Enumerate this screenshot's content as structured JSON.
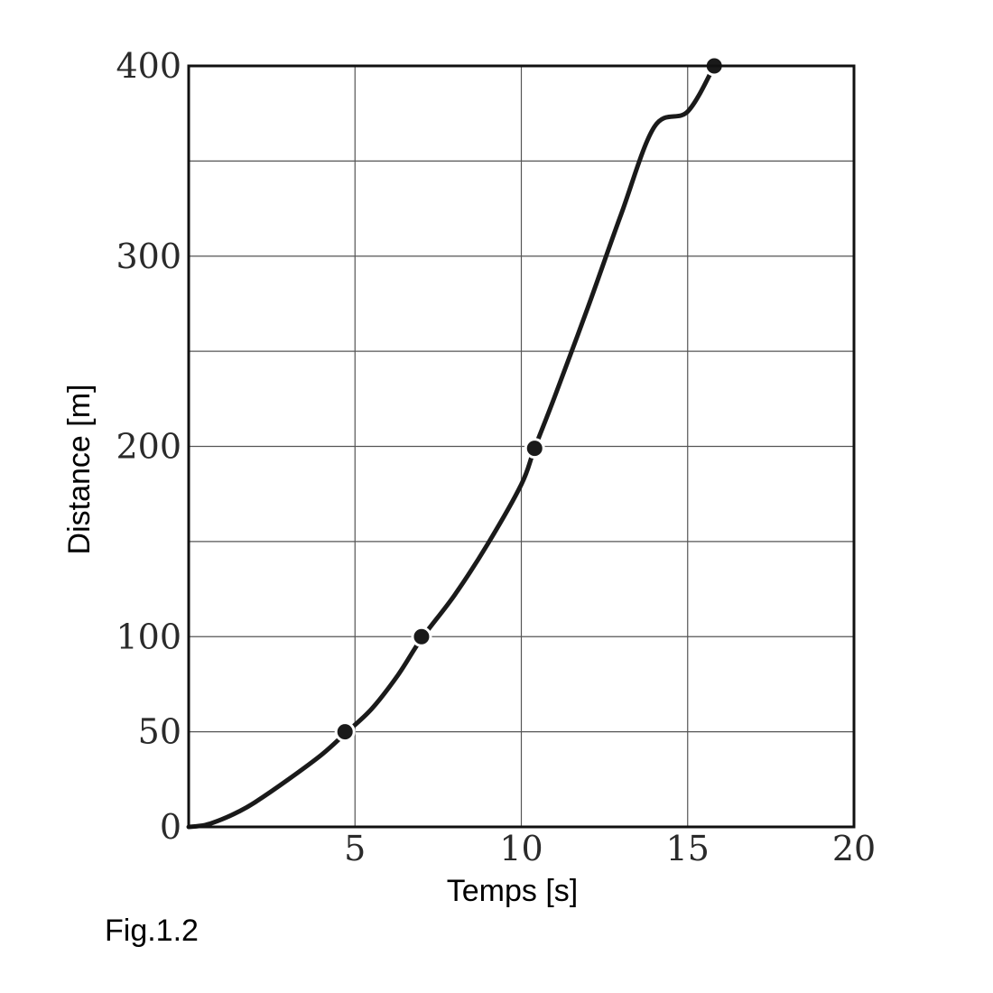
{
  "chart_data": {
    "type": "line",
    "title": "",
    "xlabel": "Temps [s]",
    "ylabel": "Distance [m]",
    "xlim": [
      0,
      20
    ],
    "ylim": [
      0,
      400
    ],
    "x_ticks": [
      5,
      10,
      15,
      20
    ],
    "x_tick_labels": [
      "5",
      "10",
      "15",
      "20"
    ],
    "y_ticks": [
      0,
      50,
      100,
      200,
      300,
      400
    ],
    "y_tick_labels": [
      "0",
      "50",
      "100",
      "200",
      "300",
      "400"
    ],
    "x_gridlines": [
      5,
      10,
      15
    ],
    "y_gridlines": [
      50,
      100,
      150,
      200,
      250,
      300,
      350
    ],
    "grid": true,
    "legend": "none",
    "series": [
      {
        "x": [
          0,
          0.5,
          1,
          1.5,
          2,
          3,
          4,
          4.7,
          5.5,
          6.3,
          7,
          8,
          9,
          10,
          10.4,
          11,
          12,
          13,
          14,
          15,
          15.8
        ],
        "y": [
          0,
          1,
          4,
          8,
          13,
          25,
          38,
          49,
          62,
          80,
          99,
          122,
          149,
          180,
          199,
          226,
          273,
          322,
          368,
          376,
          400
        ]
      }
    ],
    "markers": {
      "x": [
        4.7,
        7.0,
        10.4,
        15.8
      ],
      "y": [
        50,
        100,
        199,
        400
      ]
    },
    "line_color": "#1a1a1a",
    "marker_color": "#1a1a1a",
    "grid_color": "#555555"
  },
  "caption": "Fig.1.2"
}
